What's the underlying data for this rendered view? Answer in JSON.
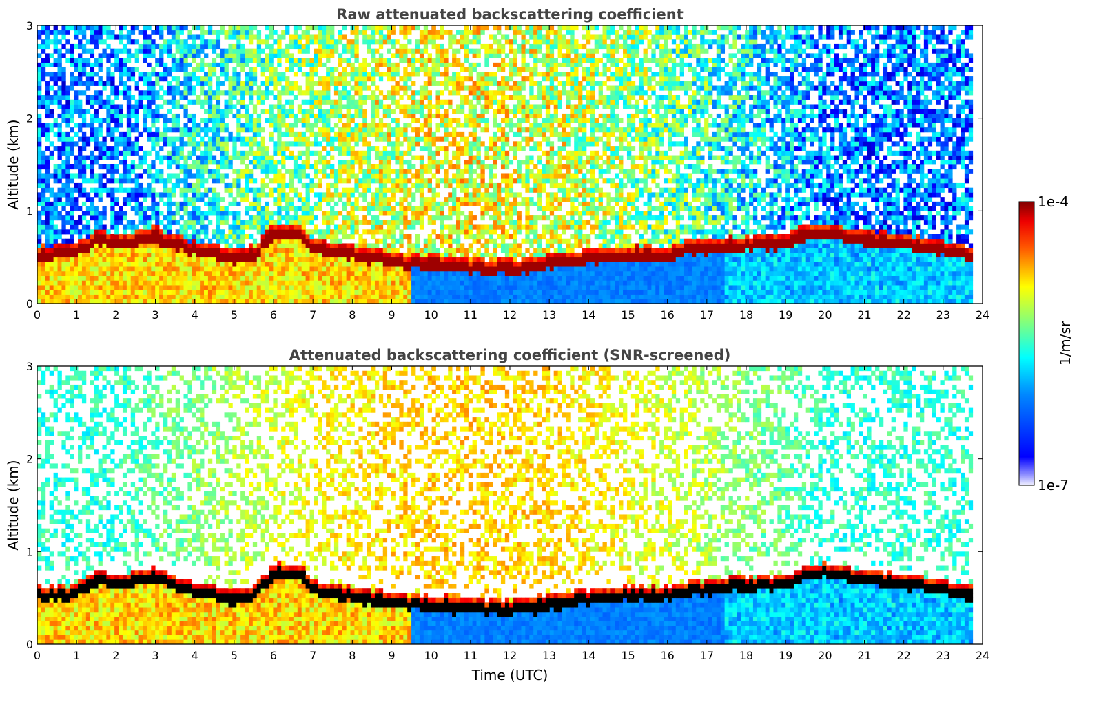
{
  "chart_data": [
    {
      "type": "heatmap",
      "title": "Raw attenuated backscattering coefficient",
      "xlabel": "",
      "ylabel": "Altitude (km)",
      "xlim": [
        0,
        24
      ],
      "ylim": [
        0,
        3
      ],
      "x_ticks": [
        "0",
        "1",
        "2",
        "3",
        "4",
        "5",
        "6",
        "7",
        "8",
        "9",
        "10",
        "11",
        "12",
        "13",
        "14",
        "15",
        "16",
        "17",
        "18",
        "19",
        "20",
        "21",
        "22",
        "23",
        "24"
      ],
      "y_ticks": [
        "0",
        "1",
        "2",
        "3"
      ],
      "data_end_hour": 23.75,
      "layer_top_km": {
        "hours": [
          0,
          1,
          1.5,
          2,
          3,
          4,
          5,
          5.5,
          6,
          6.7,
          7,
          8,
          9,
          10,
          11,
          12,
          13,
          14,
          15,
          16,
          16.5,
          17,
          17.5,
          18,
          19,
          19.5,
          20,
          21,
          22,
          23,
          23.75
        ],
        "values": [
          0.55,
          0.58,
          0.72,
          0.68,
          0.75,
          0.6,
          0.52,
          0.55,
          0.8,
          0.78,
          0.62,
          0.55,
          0.48,
          0.45,
          0.42,
          0.4,
          0.45,
          0.52,
          0.55,
          0.55,
          0.62,
          0.6,
          0.65,
          0.66,
          0.68,
          0.78,
          0.8,
          0.72,
          0.68,
          0.62,
          0.55
        ]
      },
      "noise_dominated_above_km": 0.8
    },
    {
      "type": "heatmap",
      "title": "Attenuated backscattering coefficient (SNR-screened)",
      "xlabel": "Time (UTC)",
      "ylabel": "Altitude (km)",
      "xlim": [
        0,
        24
      ],
      "ylim": [
        0,
        3
      ],
      "x_ticks": [
        "0",
        "1",
        "2",
        "3",
        "4",
        "5",
        "6",
        "7",
        "8",
        "9",
        "10",
        "11",
        "12",
        "13",
        "14",
        "15",
        "16",
        "17",
        "18",
        "19",
        "20",
        "21",
        "22",
        "23",
        "24"
      ],
      "y_ticks": [
        "0",
        "1",
        "2",
        "3"
      ],
      "data_end_hour": 23.75,
      "layer_top_km": {
        "hours": [
          0,
          1,
          1.5,
          2,
          3,
          4,
          5,
          5.5,
          6,
          6.7,
          7,
          8,
          9,
          10,
          11,
          12,
          13,
          14,
          15,
          16,
          16.5,
          17,
          17.5,
          18,
          19,
          19.5,
          20,
          21,
          22,
          23,
          23.75
        ],
        "values": [
          0.55,
          0.58,
          0.72,
          0.68,
          0.75,
          0.6,
          0.52,
          0.55,
          0.8,
          0.78,
          0.62,
          0.55,
          0.48,
          0.45,
          0.42,
          0.4,
          0.45,
          0.52,
          0.55,
          0.55,
          0.62,
          0.6,
          0.65,
          0.66,
          0.68,
          0.78,
          0.8,
          0.72,
          0.68,
          0.62,
          0.55
        ]
      },
      "screened_above_km": 0.9
    }
  ],
  "colorbar": {
    "label": "1/m/sr",
    "min_label": "1e-7",
    "max_label": "1e-4",
    "scale": "log",
    "colormap": "jet",
    "colors": [
      "#ffffff",
      "#0000ff",
      "#00ffff",
      "#ffff00",
      "#ff0000",
      "#800000"
    ]
  }
}
